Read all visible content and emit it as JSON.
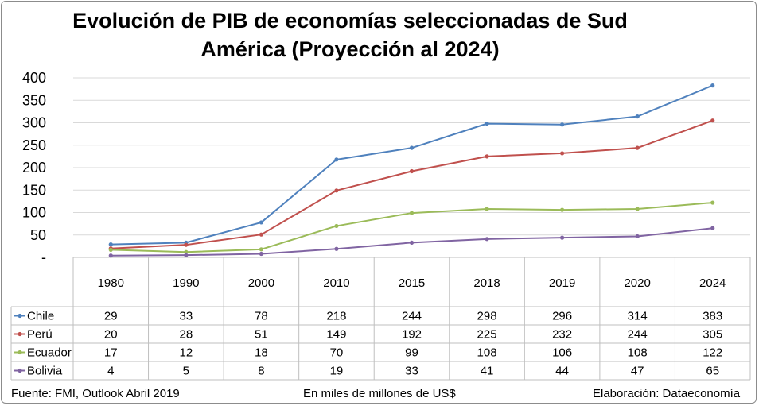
{
  "chart_data": {
    "type": "line",
    "title": "Evolución de PIB de economías seleccionadas de Sud América (Proyección al 2024)",
    "title_line1": "Evolución de PIB de economías seleccionadas de Sud",
    "title_line2": "América (Proyección al 2024)",
    "x": [
      "1980",
      "1990",
      "2000",
      "2010",
      "2015",
      "2018",
      "2019",
      "2020",
      "2024"
    ],
    "yticks": [
      "-",
      "50",
      "100",
      "150",
      "200",
      "250",
      "300",
      "350",
      "400"
    ],
    "ylim": [
      0,
      400
    ],
    "grid": true,
    "legend": "data table below chart",
    "series": [
      {
        "name": "Chile",
        "color": "#4f81bd",
        "values": [
          29,
          33,
          78,
          218,
          244,
          298,
          296,
          314,
          383
        ]
      },
      {
        "name": "Perú",
        "color": "#c0504d",
        "values": [
          20,
          28,
          51,
          149,
          192,
          225,
          232,
          244,
          305
        ]
      },
      {
        "name": "Ecuador",
        "color": "#9bbb59",
        "values": [
          17,
          12,
          18,
          70,
          99,
          108,
          106,
          108,
          122
        ]
      },
      {
        "name": "Bolivia",
        "color": "#8064a2",
        "values": [
          4,
          5,
          8,
          19,
          33,
          41,
          44,
          47,
          65
        ]
      }
    ]
  },
  "footer": {
    "source": "Fuente: FMI, Outlook Abril 2019",
    "units": "En miles de millones de US$",
    "credit": "Elaboración: Dataeconomía"
  }
}
